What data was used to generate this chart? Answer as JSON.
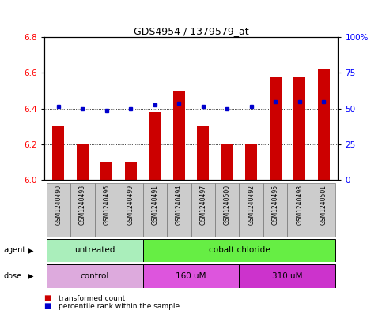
{
  "title": "GDS4954 / 1379579_at",
  "samples": [
    "GSM1240490",
    "GSM1240493",
    "GSM1240496",
    "GSM1240499",
    "GSM1240491",
    "GSM1240494",
    "GSM1240497",
    "GSM1240500",
    "GSM1240492",
    "GSM1240495",
    "GSM1240498",
    "GSM1240501"
  ],
  "bar_values": [
    6.3,
    6.2,
    6.1,
    6.1,
    6.38,
    6.5,
    6.3,
    6.2,
    6.2,
    6.58,
    6.58,
    6.62
  ],
  "dot_values": [
    6.41,
    6.4,
    6.39,
    6.4,
    6.42,
    6.43,
    6.41,
    6.4,
    6.41,
    6.44,
    6.44,
    6.44
  ],
  "bar_color": "#cc0000",
  "dot_color": "#0000cc",
  "ylim_left": [
    6.0,
    6.8
  ],
  "ylim_right": [
    0,
    100
  ],
  "yticks_left": [
    6.0,
    6.2,
    6.4,
    6.6,
    6.8
  ],
  "yticks_right": [
    0,
    25,
    50,
    75,
    100
  ],
  "ytick_labels_right": [
    "0",
    "25",
    "50",
    "75",
    "100%"
  ],
  "agent_groups": [
    {
      "label": "untreated",
      "start": 0,
      "end": 4,
      "color": "#aaeebb"
    },
    {
      "label": "cobalt chloride",
      "start": 4,
      "end": 12,
      "color": "#66ee44"
    }
  ],
  "dose_groups": [
    {
      "label": "control",
      "start": 0,
      "end": 4,
      "color": "#ddaadd"
    },
    {
      "label": "160 uM",
      "start": 4,
      "end": 8,
      "color": "#dd55dd"
    },
    {
      "label": "310 uM",
      "start": 8,
      "end": 12,
      "color": "#cc33cc"
    }
  ],
  "legend_labels": [
    "transformed count",
    "percentile rank within the sample"
  ],
  "legend_colors": [
    "#cc0000",
    "#0000cc"
  ],
  "sample_box_color": "#cccccc",
  "sample_box_edge": "#888888",
  "bar_width": 0.5,
  "bar_bottom": 6.0
}
